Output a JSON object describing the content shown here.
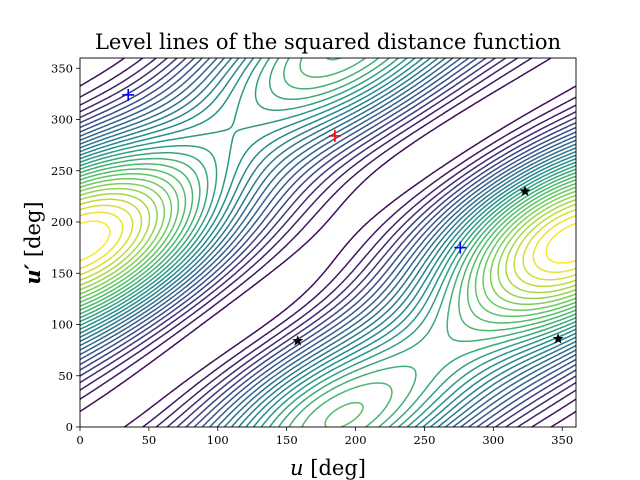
{
  "chart_data": {
    "type": "contour",
    "title": "Level lines of the squared distance function",
    "xlabel": "u [deg]",
    "ylabel": "u′ [deg]",
    "xlim": [
      0,
      360
    ],
    "ylim": [
      0,
      360
    ],
    "xticks": [
      "0",
      "50",
      "100",
      "150",
      "200",
      "250",
      "300",
      "350"
    ],
    "yticks": [
      "0",
      "50",
      "100",
      "150",
      "200",
      "250",
      "300",
      "350"
    ],
    "xtick_values": [
      0,
      50,
      100,
      150,
      200,
      250,
      300,
      350
    ],
    "ytick_values": [
      0,
      50,
      100,
      150,
      200,
      250,
      300,
      350
    ],
    "colormap": [
      "#440154",
      "#3b528b",
      "#21918c",
      "#5ec962",
      "#fde725"
    ],
    "num_levels": 30,
    "markers": [
      {
        "kind": "maximum",
        "symbol": "plus",
        "color": "#ff0000",
        "x": 185,
        "y": 284
      },
      {
        "kind": "minimum",
        "symbol": "plus",
        "color": "#0000ff",
        "x": 35,
        "y": 324
      },
      {
        "kind": "minimum",
        "symbol": "plus",
        "color": "#0000ff",
        "x": 276,
        "y": 175
      },
      {
        "kind": "saddle",
        "symbol": "star",
        "color": "#000000",
        "x": 158,
        "y": 84
      },
      {
        "kind": "saddle",
        "symbol": "star",
        "color": "#000000",
        "x": 323,
        "y": 230
      },
      {
        "kind": "saddle",
        "symbol": "star",
        "color": "#000000",
        "x": 347,
        "y": 86
      }
    ]
  }
}
